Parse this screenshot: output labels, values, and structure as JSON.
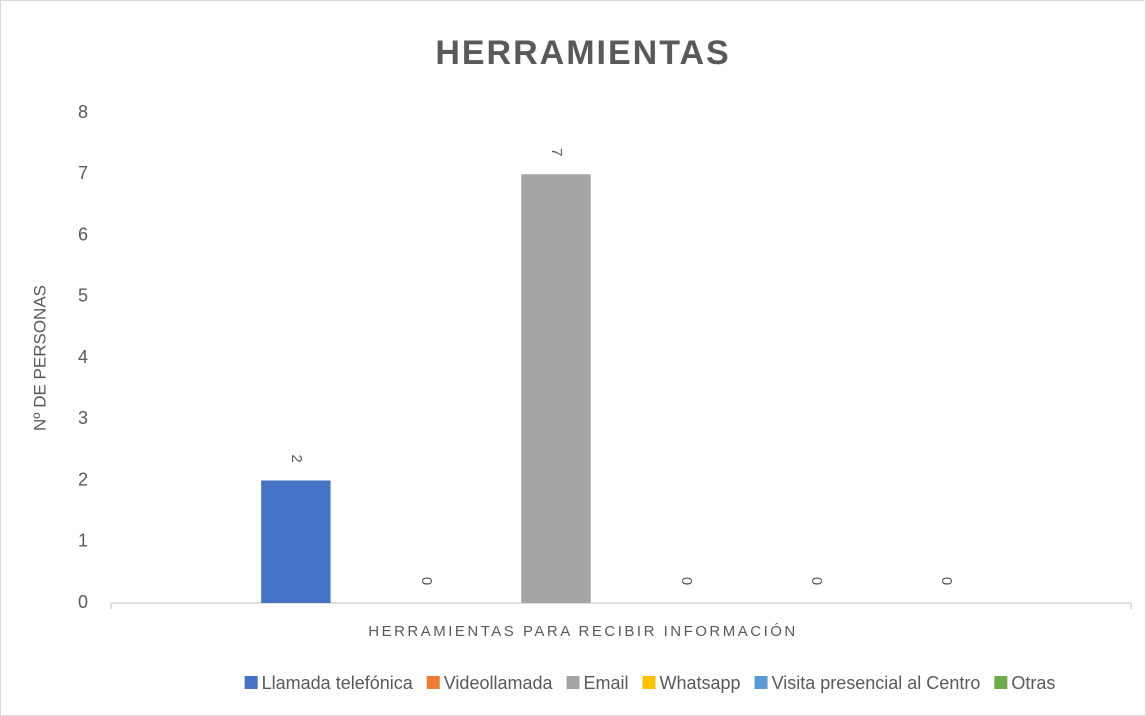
{
  "chart_data": {
    "type": "bar",
    "title": "HERRAMIENTAS",
    "x_label": "HERRAMIENTAS PARA RECIBIR INFORMACIÓN",
    "y_label": "Nº DE PERSONAS",
    "categories": [
      null
    ],
    "series": [
      {
        "name": "Llamada telefónica",
        "color": "#4472c4",
        "values": [
          2
        ]
      },
      {
        "name": "Videollamada",
        "color": "#ed7d31",
        "values": [
          0
        ]
      },
      {
        "name": "Email",
        "color": "#a5a5a5",
        "values": [
          7
        ]
      },
      {
        "name": "Whatsapp",
        "color": "#ffc000",
        "values": [
          0
        ]
      },
      {
        "name": "Visita presencial al Centro",
        "color": "#5b9bd5",
        "values": [
          0
        ]
      },
      {
        "name": "Otras",
        "color": "#70ad47",
        "values": [
          0
        ]
      }
    ],
    "ylim": [
      0,
      8
    ],
    "yticks": [
      0,
      1,
      2,
      3,
      4,
      5,
      6,
      7,
      8
    ],
    "grid": false,
    "legend": "bottom",
    "data_labels": true
  }
}
